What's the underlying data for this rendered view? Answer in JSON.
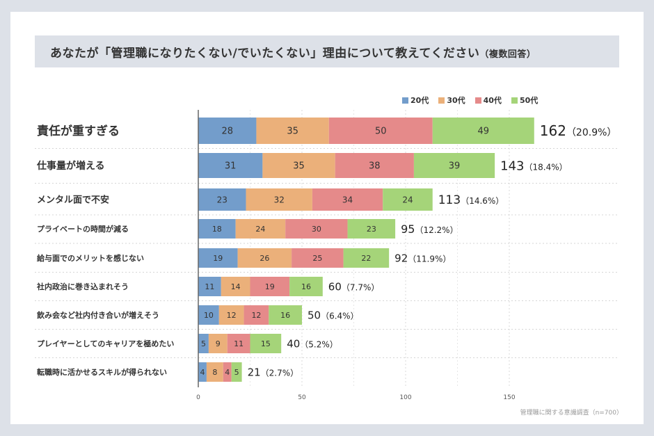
{
  "title": {
    "main": "あなたが「管理職になりたくない/でいたくない」理由について教えてください",
    "sub": "（複数回答）"
  },
  "source": "管理職に関する意識調査（n=700）",
  "chart_data": {
    "type": "bar",
    "orientation": "horizontal",
    "stacked": true,
    "title": "あなたが「管理職になりたくない/でいたくない」理由について教えてください（複数回答）",
    "xlabel": "",
    "ylabel": "",
    "xlim": [
      0,
      165
    ],
    "xticks": [
      0,
      50,
      100,
      150
    ],
    "grid": true,
    "legend_position": "top-right",
    "categories": [
      "責任が重すぎる",
      "仕事量が増える",
      "メンタル面で不安",
      "プライベートの時間が減る",
      "給与面でのメリットを感じない",
      "社内政治に巻き込まれそう",
      "飲み会など社内付き合いが増えそう",
      "プレイヤーとしてのキャリアを極めたい",
      "転職時に活かせるスキルが得られない"
    ],
    "series": [
      {
        "name": "20代",
        "color": "#739dcb",
        "values": [
          28,
          31,
          23,
          18,
          19,
          11,
          10,
          5,
          4
        ]
      },
      {
        "name": "30代",
        "color": "#ebb07a",
        "values": [
          35,
          35,
          32,
          24,
          26,
          14,
          12,
          9,
          8
        ]
      },
      {
        "name": "40代",
        "color": "#e58a8a",
        "values": [
          50,
          38,
          34,
          30,
          25,
          19,
          12,
          11,
          4
        ]
      },
      {
        "name": "50代",
        "color": "#a5d479",
        "values": [
          49,
          39,
          24,
          23,
          22,
          16,
          16,
          15,
          5
        ]
      }
    ],
    "totals": [
      162,
      143,
      113,
      95,
      92,
      60,
      50,
      40,
      21
    ],
    "percentages": [
      "20.9%",
      "18.4%",
      "14.6%",
      "12.2%",
      "11.9%",
      "7.7%",
      "6.4%",
      "5.2%",
      "2.7%"
    ]
  }
}
